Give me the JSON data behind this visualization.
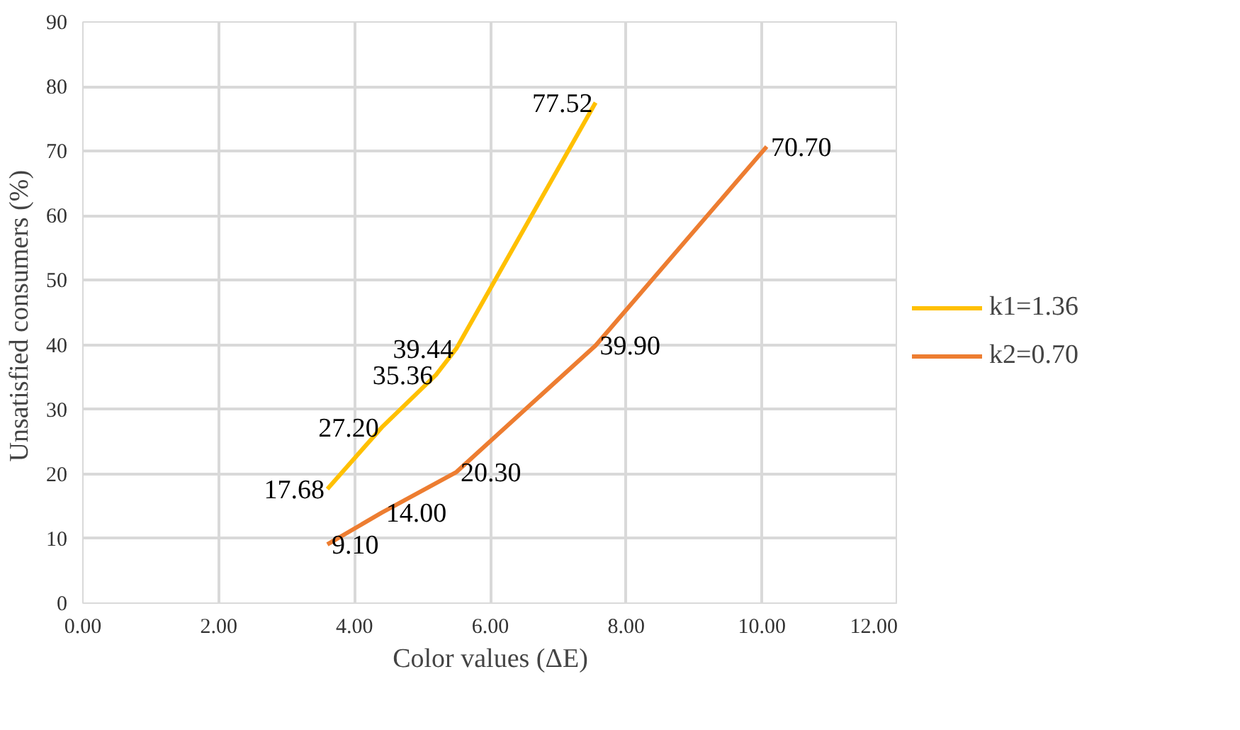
{
  "chart_data": {
    "type": "line",
    "xlabel": "Color values (ΔE)",
    "ylabel": "Unsatisfied consumers  (%)",
    "series": [
      {
        "name": "k1=1.36",
        "color": "#ffc000",
        "x": [
          3.6,
          4.4,
          5.2,
          5.5,
          7.55
        ],
        "values": [
          17.68,
          27.2,
          35.36,
          39.44,
          77.52
        ]
      },
      {
        "name": "k2=0.70",
        "color": "#ed7d31",
        "x": [
          3.6,
          4.4,
          5.5,
          7.55,
          10.07
        ],
        "values": [
          9.1,
          14.0,
          20.3,
          39.9,
          70.7
        ]
      }
    ],
    "xlim": [
      0,
      12
    ],
    "xticks": [
      {
        "value": 0,
        "label": "0.00"
      },
      {
        "value": 2,
        "label": "2.00"
      },
      {
        "value": 4,
        "label": "4.00"
      },
      {
        "value": 6,
        "label": "6.00"
      },
      {
        "value": 8,
        "label": "8.00"
      },
      {
        "value": 10,
        "label": "10.00"
      },
      {
        "value": 12,
        "label": "12.00"
      }
    ],
    "ylim": [
      0,
      90
    ],
    "yticks": [
      0,
      10,
      20,
      30,
      40,
      50,
      60,
      70,
      80,
      90
    ],
    "value_labels": [
      [
        "17.68",
        "27.20",
        "35.36",
        "39.44",
        "77.52"
      ],
      [
        "9.10",
        "14.00",
        "20.30",
        "39.90",
        "70.70"
      ]
    ],
    "grid": true,
    "legend": "right",
    "marker": "none",
    "line_style": "solid"
  }
}
